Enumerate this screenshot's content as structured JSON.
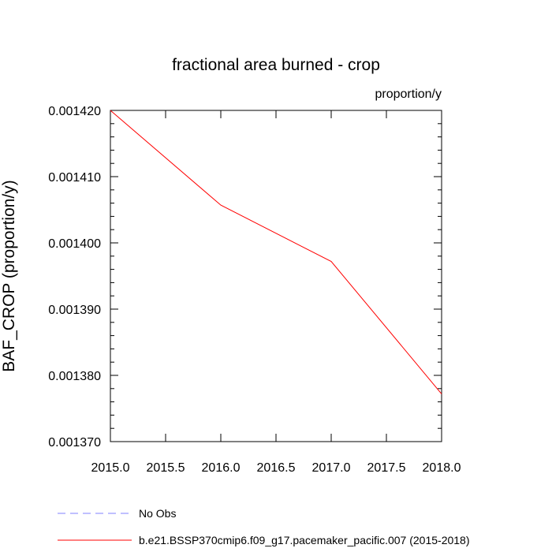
{
  "chart_data": {
    "type": "line",
    "title": "fractional area burned - crop",
    "units": "proportion/y",
    "ylabel": "BAF_CROP  (proportion/y)",
    "xlabel": "",
    "xlim": [
      2015.0,
      2018.0
    ],
    "ylim": [
      0.00137,
      0.00142
    ],
    "xticks": [
      2015.0,
      2015.5,
      2016.0,
      2016.5,
      2017.0,
      2017.5,
      2018.0
    ],
    "xtick_labels": [
      "2015.0",
      "2015.5",
      "2016.0",
      "2016.5",
      "2017.0",
      "2017.5",
      "2018.0"
    ],
    "yticks": [
      0.00137,
      0.00138,
      0.00139,
      0.0014,
      0.00141,
      0.00142
    ],
    "ytick_labels": [
      "0.001370",
      "0.001380",
      "0.001390",
      "0.001400",
      "0.001410",
      "0.001420"
    ],
    "grid": false,
    "legend_position": "bottom",
    "series": [
      {
        "name": "No Obs",
        "color": "#8080ff",
        "dash": "dashed",
        "x": [],
        "y": []
      },
      {
        "name": "b.e21.BSSP370cmip6.f09_g17.pacemaker_pacific.007 (2015-2018)",
        "color": "#ff0000",
        "dash": "solid",
        "x": [
          2015.0,
          2016.0,
          2017.0,
          2018.0
        ],
        "y": [
          0.00142,
          0.0014057,
          0.0013972,
          0.0013772
        ]
      }
    ]
  }
}
